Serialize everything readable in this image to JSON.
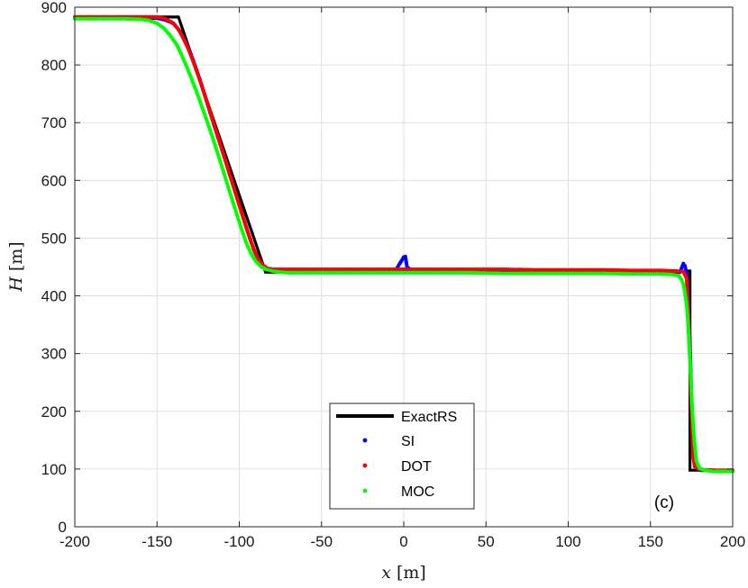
{
  "chart_data": {
    "type": "line",
    "xlabel_var": "x",
    "xlabel_unit": "[m]",
    "ylabel_var": "H",
    "ylabel_unit": "[m]",
    "xlim": [
      -200,
      200
    ],
    "ylim": [
      0,
      900
    ],
    "x_ticks": [
      -200,
      -150,
      -100,
      -50,
      0,
      50,
      100,
      150,
      200
    ],
    "y_ticks": [
      0,
      100,
      200,
      300,
      400,
      500,
      600,
      700,
      800,
      900
    ],
    "grid": true,
    "legend_position": "bottom-center",
    "panel_label": "(c)",
    "colors": {
      "exact": "#000000",
      "si": "#0000ff",
      "dot": "#ff0000",
      "moc": "#00ff00",
      "grid": "#e0e0e0"
    },
    "series": [
      {
        "name": "ExactRS",
        "style": "line",
        "points": [
          [
            -200,
            883
          ],
          [
            -137,
            883
          ],
          [
            -84,
            441
          ],
          [
            174,
            443
          ],
          [
            174,
            98
          ],
          [
            200,
            98
          ]
        ]
      },
      {
        "name": "SI",
        "style": "markers",
        "points": [
          [
            -200,
            881
          ],
          [
            -190,
            881
          ],
          [
            -180,
            881
          ],
          [
            -170,
            881
          ],
          [
            -160,
            881
          ],
          [
            -150,
            881
          ],
          [
            -145,
            878
          ],
          [
            -140,
            872
          ],
          [
            -136,
            858
          ],
          [
            -133,
            842
          ],
          [
            -130,
            823
          ],
          [
            -127,
            800
          ],
          [
            -124,
            775
          ],
          [
            -121,
            748
          ],
          [
            -118,
            720
          ],
          [
            -115,
            693
          ],
          [
            -112,
            666
          ],
          [
            -109,
            640
          ],
          [
            -106,
            612
          ],
          [
            -103,
            585
          ],
          [
            -100,
            558
          ],
          [
            -97,
            530
          ],
          [
            -94,
            503
          ],
          [
            -91,
            479
          ],
          [
            -88,
            460
          ],
          [
            -85,
            449
          ],
          [
            -82,
            445
          ],
          [
            -78,
            444
          ],
          [
            -70,
            444
          ],
          [
            -50,
            444
          ],
          [
            -25,
            444
          ],
          [
            -5,
            444
          ],
          [
            0,
            467
          ],
          [
            1,
            468
          ],
          [
            2,
            450
          ],
          [
            5,
            444
          ],
          [
            25,
            444
          ],
          [
            50,
            444
          ],
          [
            75,
            443
          ],
          [
            100,
            443
          ],
          [
            125,
            443
          ],
          [
            150,
            442
          ],
          [
            162,
            442
          ],
          [
            168,
            441
          ],
          [
            170,
            456
          ],
          [
            171,
            452
          ],
          [
            172,
            440
          ],
          [
            173,
            400
          ],
          [
            173.5,
            360
          ],
          [
            174,
            320
          ],
          [
            174.5,
            270
          ],
          [
            175,
            210
          ],
          [
            175.5,
            170
          ],
          [
            176,
            140
          ],
          [
            177,
            118
          ],
          [
            178,
            105
          ],
          [
            180,
            98
          ],
          [
            190,
            97
          ],
          [
            200,
            97
          ]
        ]
      },
      {
        "name": "DOT",
        "style": "markers",
        "points": [
          [
            -200,
            883
          ],
          [
            -190,
            883
          ],
          [
            -180,
            883
          ],
          [
            -170,
            883
          ],
          [
            -160,
            883
          ],
          [
            -150,
            883
          ],
          [
            -145,
            880
          ],
          [
            -141,
            874
          ],
          [
            -137,
            862
          ],
          [
            -134,
            846
          ],
          [
            -131,
            828
          ],
          [
            -128,
            806
          ],
          [
            -125,
            782
          ],
          [
            -122,
            757
          ],
          [
            -119,
            730
          ],
          [
            -116,
            703
          ],
          [
            -113,
            676
          ],
          [
            -110,
            649
          ],
          [
            -107,
            621
          ],
          [
            -104,
            594
          ],
          [
            -101,
            566
          ],
          [
            -98,
            539
          ],
          [
            -95,
            512
          ],
          [
            -92,
            487
          ],
          [
            -89,
            467
          ],
          [
            -86,
            454
          ],
          [
            -83,
            448
          ],
          [
            -80,
            446
          ],
          [
            -75,
            446
          ],
          [
            -60,
            446
          ],
          [
            -40,
            446
          ],
          [
            -20,
            446
          ],
          [
            0,
            446
          ],
          [
            20,
            446
          ],
          [
            40,
            446
          ],
          [
            60,
            446
          ],
          [
            80,
            445
          ],
          [
            100,
            445
          ],
          [
            120,
            445
          ],
          [
            140,
            444
          ],
          [
            155,
            444
          ],
          [
            165,
            443
          ],
          [
            170,
            442
          ],
          [
            172,
            430
          ],
          [
            173,
            380
          ],
          [
            174,
            300
          ],
          [
            174.5,
            240
          ],
          [
            175,
            200
          ],
          [
            175.5,
            160
          ],
          [
            176,
            120
          ],
          [
            177,
            104
          ],
          [
            180,
            99
          ],
          [
            190,
            98
          ],
          [
            200,
            98
          ]
        ]
      },
      {
        "name": "MOC",
        "style": "markers",
        "points": [
          [
            -200,
            880
          ],
          [
            -190,
            880
          ],
          [
            -180,
            880
          ],
          [
            -170,
            880
          ],
          [
            -160,
            879
          ],
          [
            -155,
            877
          ],
          [
            -150,
            872
          ],
          [
            -146,
            864
          ],
          [
            -142,
            851
          ],
          [
            -138,
            835
          ],
          [
            -135,
            817
          ],
          [
            -132,
            797
          ],
          [
            -129,
            776
          ],
          [
            -126,
            754
          ],
          [
            -123,
            730
          ],
          [
            -120,
            706
          ],
          [
            -117,
            681
          ],
          [
            -114,
            655
          ],
          [
            -111,
            628
          ],
          [
            -108,
            600
          ],
          [
            -105,
            573
          ],
          [
            -102,
            546
          ],
          [
            -99,
            519
          ],
          [
            -96,
            494
          ],
          [
            -93,
            474
          ],
          [
            -90,
            460
          ],
          [
            -87,
            451
          ],
          [
            -84,
            446
          ],
          [
            -80,
            443
          ],
          [
            -75,
            441
          ],
          [
            -70,
            440
          ],
          [
            -60,
            440
          ],
          [
            -40,
            440
          ],
          [
            -20,
            440
          ],
          [
            0,
            440
          ],
          [
            20,
            440
          ],
          [
            40,
            440
          ],
          [
            60,
            439
          ],
          [
            80,
            439
          ],
          [
            100,
            439
          ],
          [
            120,
            439
          ],
          [
            140,
            438
          ],
          [
            155,
            438
          ],
          [
            163,
            437
          ],
          [
            167,
            435
          ],
          [
            169,
            428
          ],
          [
            170,
            420
          ],
          [
            171,
            405
          ],
          [
            172,
            385
          ],
          [
            172.5,
            368
          ],
          [
            173,
            345
          ],
          [
            173.5,
            318
          ],
          [
            174,
            290
          ],
          [
            174.5,
            262
          ],
          [
            175,
            230
          ],
          [
            175.5,
            202
          ],
          [
            176,
            178
          ],
          [
            176.5,
            157
          ],
          [
            177,
            140
          ],
          [
            177.5,
            126
          ],
          [
            178,
            114
          ],
          [
            179,
            106
          ],
          [
            180,
            101
          ],
          [
            183,
            98
          ],
          [
            188,
            96
          ],
          [
            195,
            96
          ],
          [
            200,
            96
          ]
        ]
      }
    ]
  }
}
